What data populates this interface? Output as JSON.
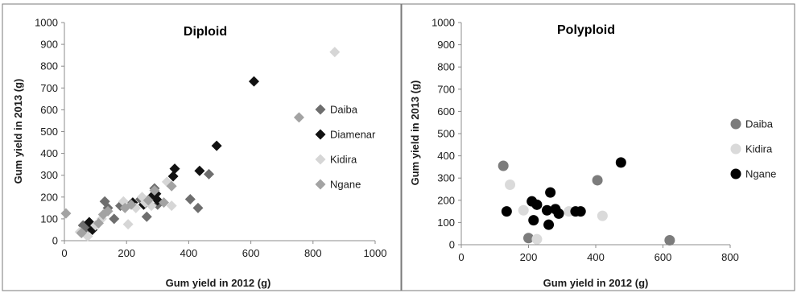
{
  "chart_data": [
    {
      "type": "scatter",
      "title": "Diploid",
      "xlabel": "Gum yield in 2012 (g)",
      "ylabel": "Gum yield in 2013 (g)",
      "xlim": [
        0,
        1000
      ],
      "ylim": [
        0,
        1000
      ],
      "xticks": [
        "0",
        "200",
        "400",
        "600",
        "800",
        "1000"
      ],
      "yticks": [
        "0",
        "100",
        "200",
        "300",
        "400",
        "500",
        "600",
        "700",
        "800",
        "900",
        "1000"
      ],
      "marker": "diamond",
      "grid": false,
      "legend_position": "right",
      "series": [
        {
          "name": "Daiba",
          "color": "#6e6e6e",
          "points": [
            [
              60,
              70
            ],
            [
              75,
              55
            ],
            [
              90,
              60
            ],
            [
              130,
              180
            ],
            [
              140,
              150
            ],
            [
              160,
              100
            ],
            [
              180,
              160
            ],
            [
              245,
              190
            ],
            [
              265,
              110
            ],
            [
              290,
              240
            ],
            [
              300,
              165
            ],
            [
              405,
              190
            ],
            [
              430,
              150
            ],
            [
              465,
              305
            ]
          ]
        },
        {
          "name": "Diamenar",
          "color": "#111111",
          "points": [
            [
              80,
              85
            ],
            [
              90,
              50
            ],
            [
              220,
              175
            ],
            [
              255,
              165
            ],
            [
              280,
              200
            ],
            [
              295,
              215
            ],
            [
              300,
              185
            ],
            [
              350,
              295
            ],
            [
              355,
              330
            ],
            [
              435,
              320
            ],
            [
              490,
              435
            ],
            [
              610,
              730
            ]
          ]
        },
        {
          "name": "Kidira",
          "color": "#d6d6d6",
          "points": [
            [
              50,
              40
            ],
            [
              75,
              20
            ],
            [
              100,
              70
            ],
            [
              120,
              100
            ],
            [
              190,
              180
            ],
            [
              205,
              75
            ],
            [
              230,
              150
            ],
            [
              250,
              200
            ],
            [
              260,
              175
            ],
            [
              280,
              160
            ],
            [
              330,
              270
            ],
            [
              345,
              160
            ],
            [
              870,
              865
            ]
          ]
        },
        {
          "name": "Ngane",
          "color": "#a3a3a3",
          "points": [
            [
              5,
              125
            ],
            [
              55,
              35
            ],
            [
              110,
              80
            ],
            [
              125,
              120
            ],
            [
              140,
              135
            ],
            [
              195,
              150
            ],
            [
              215,
              165
            ],
            [
              270,
              185
            ],
            [
              290,
              230
            ],
            [
              320,
              175
            ],
            [
              345,
              250
            ],
            [
              755,
              565
            ]
          ]
        }
      ]
    },
    {
      "type": "scatter",
      "title": "Polyploid",
      "xlabel": "Gum yield in 2012 (g)",
      "ylabel": "Gum yield in 2013 (g)",
      "xlim": [
        0,
        800
      ],
      "ylim": [
        0,
        1000
      ],
      "xticks": [
        "0",
        "200",
        "400",
        "600",
        "800"
      ],
      "yticks": [
        "0",
        "100",
        "200",
        "300",
        "400",
        "500",
        "600",
        "700",
        "800",
        "900",
        "1000"
      ],
      "marker": "circle",
      "grid": false,
      "legend_position": "right",
      "series": [
        {
          "name": "Daiba",
          "color": "#7c7c7c",
          "points": [
            [
              125,
              355
            ],
            [
              200,
              30
            ],
            [
              405,
              290
            ],
            [
              620,
              20
            ]
          ]
        },
        {
          "name": "Kidira",
          "color": "#dadada",
          "points": [
            [
              145,
              270
            ],
            [
              185,
              155
            ],
            [
              225,
              25
            ],
            [
              320,
              150
            ],
            [
              420,
              130
            ]
          ]
        },
        {
          "name": "Ngane",
          "color": "#000000",
          "points": [
            [
              135,
              150
            ],
            [
              210,
              195
            ],
            [
              215,
              110
            ],
            [
              225,
              180
            ],
            [
              255,
              155
            ],
            [
              260,
              90
            ],
            [
              265,
              235
            ],
            [
              280,
              160
            ],
            [
              290,
              140
            ],
            [
              340,
              150
            ],
            [
              355,
              150
            ],
            [
              475,
              370
            ]
          ]
        }
      ]
    }
  ]
}
